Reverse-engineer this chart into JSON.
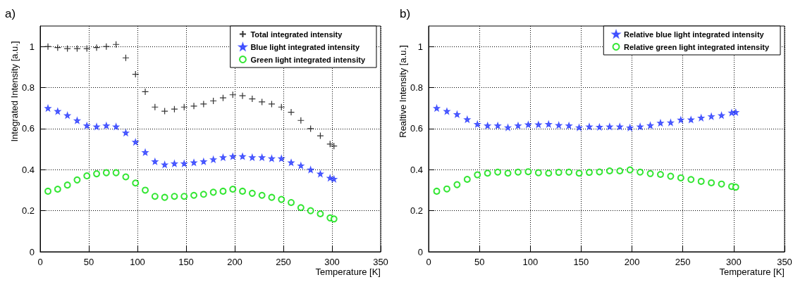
{
  "chart_data": [
    {
      "type": "scatter",
      "title": "a)",
      "xlabel": "Temperature [K]",
      "ylabel": "Integrated Intensity [a.u.]",
      "x": [
        8,
        18,
        28,
        38,
        48,
        58,
        68,
        78,
        88,
        98,
        108,
        118,
        128,
        138,
        148,
        158,
        168,
        178,
        188,
        198,
        208,
        218,
        228,
        238,
        248,
        258,
        268,
        278,
        288,
        298,
        302
      ],
      "series": [
        {
          "name": "Total integrated intensity",
          "color": "#000000",
          "marker": "cross",
          "values": [
            1.0,
            0.995,
            0.99,
            0.99,
            0.99,
            0.995,
            1.0,
            1.01,
            0.945,
            0.865,
            0.78,
            0.705,
            0.685,
            0.695,
            0.705,
            0.71,
            0.72,
            0.735,
            0.75,
            0.765,
            0.76,
            0.745,
            0.73,
            0.72,
            0.705,
            0.68,
            0.64,
            0.6,
            0.565,
            0.525,
            0.515
          ]
        },
        {
          "name": "Blue light integrated intensity",
          "color": "#2a3cff",
          "marker": "star",
          "values": [
            0.7,
            0.685,
            0.665,
            0.64,
            0.615,
            0.61,
            0.615,
            0.61,
            0.58,
            0.535,
            0.485,
            0.44,
            0.425,
            0.43,
            0.43,
            0.435,
            0.44,
            0.45,
            0.46,
            0.465,
            0.465,
            0.46,
            0.46,
            0.455,
            0.455,
            0.435,
            0.42,
            0.4,
            0.38,
            0.36,
            0.355
          ]
        },
        {
          "name": "Green light integrated intensity",
          "color": "#00e000",
          "marker": "circle",
          "values": [
            0.295,
            0.305,
            0.325,
            0.35,
            0.37,
            0.38,
            0.385,
            0.385,
            0.365,
            0.335,
            0.3,
            0.27,
            0.265,
            0.27,
            0.27,
            0.275,
            0.28,
            0.29,
            0.295,
            0.305,
            0.295,
            0.285,
            0.275,
            0.265,
            0.255,
            0.24,
            0.215,
            0.2,
            0.185,
            0.165,
            0.16
          ]
        }
      ],
      "xlim": [
        0,
        350
      ],
      "xticks": [
        0,
        50,
        100,
        150,
        200,
        250,
        300,
        350
      ],
      "ylim": [
        0,
        1.1
      ],
      "yticks": [
        0,
        0.2,
        0.4,
        0.6,
        0.8,
        1
      ],
      "grid": true,
      "legend": "top right"
    },
    {
      "type": "scatter",
      "title": "b)",
      "xlabel": "Temperature [K]",
      "ylabel": "Realtive Intensity [a.u.]",
      "x": [
        8,
        18,
        28,
        38,
        48,
        58,
        68,
        78,
        88,
        98,
        108,
        118,
        128,
        138,
        148,
        158,
        168,
        178,
        188,
        198,
        208,
        218,
        228,
        238,
        248,
        258,
        268,
        278,
        288,
        298,
        302
      ],
      "series": [
        {
          "name": "Relative blue light integrated intensity",
          "color": "#2a3cff",
          "marker": "star",
          "values": [
            0.7,
            0.685,
            0.67,
            0.645,
            0.622,
            0.615,
            0.615,
            0.606,
            0.615,
            0.62,
            0.62,
            0.622,
            0.617,
            0.615,
            0.606,
            0.61,
            0.608,
            0.61,
            0.61,
            0.605,
            0.61,
            0.616,
            0.628,
            0.63,
            0.643,
            0.644,
            0.653,
            0.66,
            0.665,
            0.678,
            0.68
          ]
        },
        {
          "name": "Relative green light integrated intensity",
          "color": "#00e000",
          "marker": "circle",
          "values": [
            0.295,
            0.306,
            0.327,
            0.353,
            0.375,
            0.383,
            0.388,
            0.383,
            0.388,
            0.39,
            0.385,
            0.383,
            0.387,
            0.388,
            0.383,
            0.387,
            0.389,
            0.394,
            0.394,
            0.399,
            0.388,
            0.381,
            0.377,
            0.368,
            0.36,
            0.352,
            0.343,
            0.336,
            0.33,
            0.318,
            0.315
          ]
        }
      ],
      "xlim": [
        0,
        350
      ],
      "xticks": [
        0,
        50,
        100,
        150,
        200,
        250,
        300,
        350
      ],
      "ylim": [
        0,
        1.1
      ],
      "yticks": [
        0,
        0.2,
        0.4,
        0.6,
        0.8,
        1
      ],
      "grid": true,
      "legend": "top right"
    }
  ]
}
